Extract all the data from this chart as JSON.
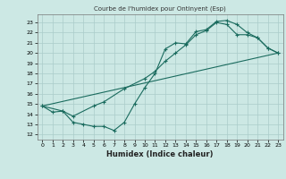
{
  "title": "Courbe de l'humidex pour Ontinyent (Esp)",
  "xlabel": "Humidex (Indice chaleur)",
  "xlim": [
    -0.5,
    23.5
  ],
  "ylim": [
    11.5,
    23.8
  ],
  "yticks": [
    12,
    13,
    14,
    15,
    16,
    17,
    18,
    19,
    20,
    21,
    22,
    23
  ],
  "xticks": [
    0,
    1,
    2,
    3,
    4,
    5,
    6,
    7,
    8,
    9,
    10,
    11,
    12,
    13,
    14,
    15,
    16,
    17,
    18,
    19,
    20,
    21,
    22,
    23
  ],
  "bg_color": "#cce8e4",
  "grid_color": "#aaccca",
  "line_color": "#1a6b5e",
  "line1_x": [
    0,
    1,
    2,
    3,
    4,
    5,
    6,
    7,
    8,
    9,
    10,
    11,
    12,
    13,
    14,
    15,
    16,
    17,
    18,
    19,
    20,
    21,
    22,
    23
  ],
  "line1_y": [
    14.8,
    14.2,
    14.3,
    13.2,
    13.0,
    12.8,
    12.8,
    12.4,
    13.2,
    15.0,
    16.6,
    18.0,
    20.4,
    21.0,
    20.9,
    22.1,
    22.3,
    23.1,
    23.2,
    22.8,
    22.0,
    21.5,
    20.5,
    20.0
  ],
  "line2_x": [
    0,
    2,
    3,
    5,
    6,
    8,
    10,
    11,
    12,
    13,
    14,
    15,
    16,
    17,
    18,
    19,
    20,
    21,
    22,
    23
  ],
  "line2_y": [
    14.8,
    14.3,
    13.8,
    14.8,
    15.2,
    16.5,
    17.5,
    18.2,
    19.2,
    20.0,
    20.8,
    21.8,
    22.2,
    23.0,
    22.8,
    21.8,
    21.8,
    21.5,
    20.5,
    20.0
  ],
  "line3_x": [
    0,
    23
  ],
  "line3_y": [
    14.8,
    20.0
  ]
}
